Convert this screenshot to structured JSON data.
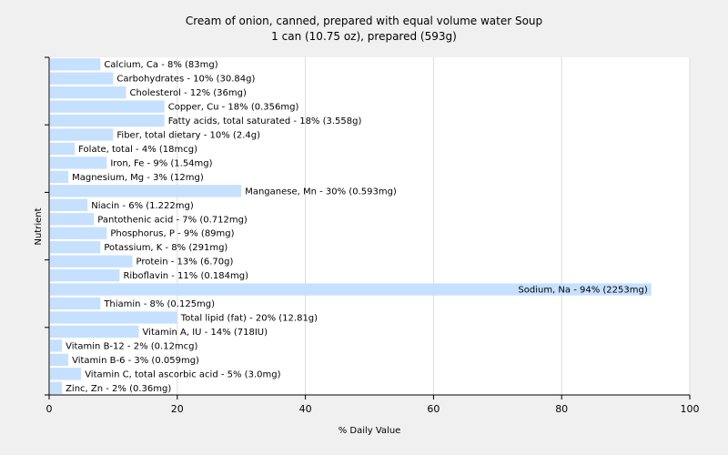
{
  "chart_data": {
    "type": "bar",
    "orientation": "horizontal",
    "title": "Cream of onion, canned, prepared with equal volume water Soup",
    "subtitle": "1 can (10.75 oz), prepared (593g)",
    "xlabel": "% Daily Value",
    "ylabel": "Nutrient",
    "xlim": [
      0,
      100
    ],
    "xticks": [
      0,
      20,
      40,
      60,
      80,
      100
    ],
    "grid": true,
    "bar_color": "#c6e0ff",
    "categories": [
      "Calcium, Ca",
      "Carbohydrates",
      "Cholesterol",
      "Copper, Cu",
      "Fatty acids, total saturated",
      "Fiber, total dietary",
      "Folate, total",
      "Iron, Fe",
      "Magnesium, Mg",
      "Manganese, Mn",
      "Niacin",
      "Pantothenic acid",
      "Phosphorus, P",
      "Potassium, K",
      "Protein",
      "Riboflavin",
      "Sodium, Na",
      "Thiamin",
      "Total lipid (fat)",
      "Vitamin A, IU",
      "Vitamin B-12",
      "Vitamin B-6",
      "Vitamin C, total ascorbic acid",
      "Zinc, Zn"
    ],
    "values": [
      8,
      10,
      12,
      18,
      18,
      10,
      4,
      9,
      3,
      30,
      6,
      7,
      9,
      8,
      13,
      11,
      94,
      8,
      20,
      14,
      2,
      3,
      5,
      2
    ],
    "labels": [
      "Calcium, Ca - 8% (83mg)",
      "Carbohydrates - 10% (30.84g)",
      "Cholesterol - 12% (36mg)",
      "Copper, Cu - 18% (0.356mg)",
      "Fatty acids, total saturated - 18% (3.558g)",
      "Fiber, total dietary - 10% (2.4g)",
      "Folate, total - 4% (18mcg)",
      "Iron, Fe - 9% (1.54mg)",
      "Magnesium, Mg - 3% (12mg)",
      "Manganese, Mn - 30% (0.593mg)",
      "Niacin - 6% (1.222mg)",
      "Pantothenic acid - 7% (0.712mg)",
      "Phosphorus, P - 9% (89mg)",
      "Potassium, K - 8% (291mg)",
      "Protein - 13% (6.70g)",
      "Riboflavin - 11% (0.184mg)",
      "Sodium, Na - 94% (2253mg)",
      "Thiamin - 8% (0.125mg)",
      "Total lipid (fat) - 20% (12.81g)",
      "Vitamin A, IU - 14% (718IU)",
      "Vitamin B-12 - 2% (0.12mcg)",
      "Vitamin B-6 - 3% (0.059mg)",
      "Vitamin C, total ascorbic acid - 5% (3.0mg)",
      "Zinc, Zn - 2% (0.36mg)"
    ]
  }
}
